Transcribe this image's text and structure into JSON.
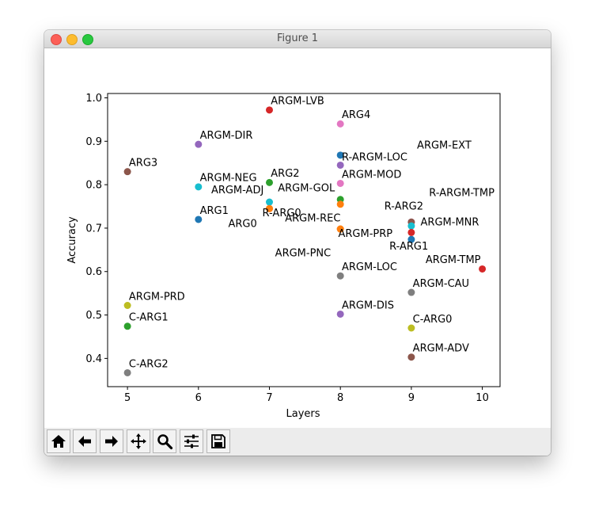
{
  "window": {
    "title": "Figure 1"
  },
  "colors": {
    "tab:blue": "#1f77b4",
    "tab:orange": "#ff7f0e",
    "tab:green": "#2ca02c",
    "tab:red": "#d62728",
    "tab:purple": "#9467bd",
    "tab:brown": "#8c564b",
    "tab:pink": "#e377c2",
    "tab:gray": "#7f7f7f",
    "tab:olive": "#bcbd22",
    "tab:cyan": "#17becf"
  },
  "chart_data": {
    "type": "scatter",
    "title": "",
    "xlabel": "Layers",
    "ylabel": "Accuracy",
    "xlim": [
      4.72,
      10.25
    ],
    "ylim": [
      0.335,
      1.01
    ],
    "xticks": [
      "5",
      "6",
      "7",
      "8",
      "9",
      "10"
    ],
    "yticks": [
      "0.4",
      "0.5",
      "0.6",
      "0.7",
      "0.8",
      "0.9",
      "1.0"
    ],
    "grid": false,
    "points": [
      {
        "label": "ARG0",
        "x": 7,
        "y": 0.745,
        "color": "#ff7f0e",
        "label_x": 6.42,
        "label_y": 0.703
      },
      {
        "label": "ARG1",
        "x": 6,
        "y": 0.72,
        "color": "#1f77b4",
        "label_x": 6.02,
        "label_y": 0.733
      },
      {
        "label": "ARG2",
        "x": 7,
        "y": 0.805,
        "color": "#2ca02c",
        "label_x": 7.02,
        "label_y": 0.818
      },
      {
        "label": "ARG3",
        "x": 5,
        "y": 0.83,
        "color": "#8c564b",
        "label_x": 5.02,
        "label_y": 0.843
      },
      {
        "label": "ARG4",
        "x": 8,
        "y": 0.94,
        "color": "#e377c2",
        "label_x": 8.02,
        "label_y": 0.953
      },
      {
        "label": "ARGM-LVB",
        "x": 7,
        "y": 0.972,
        "color": "#d62728",
        "label_x": 7.02,
        "label_y": 0.985
      },
      {
        "label": "ARGM-DIR",
        "x": 6,
        "y": 0.893,
        "color": "#9467bd",
        "label_x": 6.02,
        "label_y": 0.906
      },
      {
        "label": "ARGM-NEG",
        "x": 6,
        "y": 0.795,
        "color": "#17becf",
        "label_x": 6.02,
        "label_y": 0.808
      },
      {
        "label": "ARGM-ADJ",
        "x": 7,
        "y": 0.76,
        "color": "#17becf",
        "label_x": 6.18,
        "label_y": 0.78
      },
      {
        "label": "R-ARG0",
        "x": 7,
        "y": 0.745,
        "color": "#ff7f0e",
        "label_x": 6.9,
        "label_y": 0.727
      },
      {
        "label": "ARGM-GOL",
        "x": 8,
        "y": 0.766,
        "color": "#2ca02c",
        "label_x": 7.12,
        "label_y": 0.785
      },
      {
        "label": "ARGM-REC",
        "x": 8,
        "y": 0.755,
        "color": "#ff7f0e",
        "label_x": 7.22,
        "label_y": 0.715
      },
      {
        "label": "ARGM-PRP",
        "x": 8,
        "y": 0.698,
        "color": "#ff7f0e",
        "label_x": 7.97,
        "label_y": 0.68
      },
      {
        "label": "ARGM-PNC",
        "x": 8,
        "y": 0.698,
        "color": "#ff7f0e",
        "label_x": 7.08,
        "label_y": 0.635
      },
      {
        "label": "ARGM-MOD",
        "x": 8,
        "y": 0.803,
        "color": "#e377c2",
        "label_x": 8.02,
        "label_y": 0.816
      },
      {
        "label": "R-ARGM-LOC",
        "x": 8,
        "y": 0.868,
        "color": "#1f77b4",
        "label_x": 8.02,
        "label_y": 0.856
      },
      {
        "label": "ARGM-EXT",
        "x": 8,
        "y": 0.845,
        "color": "#9467bd",
        "label_x": 9.08,
        "label_y": 0.883
      },
      {
        "label": "R-ARGM-TMP",
        "x": 9,
        "y": 0.714,
        "color": "#e377c2",
        "label_x": 9.25,
        "label_y": 0.774
      },
      {
        "label": "R-ARG2",
        "x": 9,
        "y": 0.714,
        "color": "#8c564b",
        "label_x": 8.62,
        "label_y": 0.743
      },
      {
        "label": "ARGM-MNR",
        "x": 9,
        "y": 0.705,
        "color": "#17becf",
        "label_x": 9.13,
        "label_y": 0.706
      },
      {
        "label": "R-ARG1",
        "x": 9,
        "y": 0.674,
        "color": "#1f77b4",
        "label_x": 8.69,
        "label_y": 0.651
      },
      {
        "label": "ARGM-CAU-point",
        "x": 9,
        "y": 0.69,
        "color": "#d62728",
        "label_x": null,
        "label_y": null
      },
      {
        "label": "ARGM-TMP",
        "x": 10,
        "y": 0.606,
        "color": "#d62728",
        "label_x": 9.2,
        "label_y": 0.62
      },
      {
        "label": "ARGM-LOC",
        "x": 8,
        "y": 0.59,
        "color": "#7f7f7f",
        "label_x": 8.02,
        "label_y": 0.603
      },
      {
        "label": "ARGM-CAU",
        "x": 9,
        "y": 0.552,
        "color": "#7f7f7f",
        "label_x": 9.02,
        "label_y": 0.565
      },
      {
        "label": "ARGM-DIS",
        "x": 8,
        "y": 0.502,
        "color": "#9467bd",
        "label_x": 8.02,
        "label_y": 0.515
      },
      {
        "label": "C-ARG0",
        "x": 9,
        "y": 0.47,
        "color": "#bcbd22",
        "label_x": 9.02,
        "label_y": 0.483
      },
      {
        "label": "ARGM-ADV",
        "x": 9,
        "y": 0.403,
        "color": "#8c564b",
        "label_x": 9.02,
        "label_y": 0.416
      },
      {
        "label": "ARGM-PRD",
        "x": 5,
        "y": 0.522,
        "color": "#bcbd22",
        "label_x": 5.02,
        "label_y": 0.535
      },
      {
        "label": "C-ARG1",
        "x": 5,
        "y": 0.474,
        "color": "#2ca02c",
        "label_x": 5.02,
        "label_y": 0.487
      },
      {
        "label": "C-ARG2",
        "x": 5,
        "y": 0.367,
        "color": "#7f7f7f",
        "label_x": 5.02,
        "label_y": 0.38
      }
    ]
  },
  "toolbar": {
    "items": [
      {
        "name": "home-button",
        "icon": "home-icon"
      },
      {
        "name": "back-button",
        "icon": "arrow-left-icon"
      },
      {
        "name": "forward-button",
        "icon": "arrow-right-icon"
      },
      {
        "name": "pan-button",
        "icon": "move-icon"
      },
      {
        "name": "zoom-button",
        "icon": "magnifier-icon"
      },
      {
        "name": "configure-subplots-button",
        "icon": "sliders-icon"
      },
      {
        "name": "save-button",
        "icon": "floppy-disk-icon"
      }
    ]
  }
}
